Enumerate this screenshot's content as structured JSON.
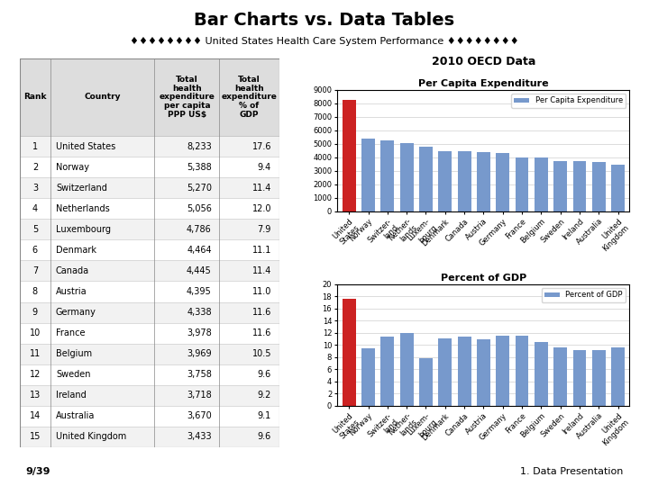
{
  "title": "Bar Charts vs. Data Tables",
  "subtitle": "♦♦♦♦♦♦♦♦ United States Health Care System Performance ♦♦♦♦♦♦♦♦",
  "annotations": [
    "2010 OECD Data",
    "9/39",
    "1. Data Presentation"
  ],
  "chart_data": [
    {
      "type": "table",
      "columns": [
        "Rank",
        "Country",
        "Total\nhealth\nexpenditure\nper capita\nPPP US$",
        "Total\nhealth\nexpenditure\n% of\nGDP"
      ],
      "rows": [
        [
          1,
          "United States",
          "8,233",
          "17.6"
        ],
        [
          2,
          "Norway",
          "5,388",
          "9.4"
        ],
        [
          3,
          "Switzerland",
          "5,270",
          "11.4"
        ],
        [
          4,
          "Netherlands",
          "5,056",
          "12.0"
        ],
        [
          5,
          "Luxembourg",
          "4,786",
          "7.9"
        ],
        [
          6,
          "Denmark",
          "4,464",
          "11.1"
        ],
        [
          7,
          "Canada",
          "4,445",
          "11.4"
        ],
        [
          8,
          "Austria",
          "4,395",
          "11.0"
        ],
        [
          9,
          "Germany",
          "4,338",
          "11.6"
        ],
        [
          10,
          "France",
          "3,978",
          "11.6"
        ],
        [
          11,
          "Belgium",
          "3,969",
          "10.5"
        ],
        [
          12,
          "Sweden",
          "3,758",
          "9.6"
        ],
        [
          13,
          "Ireland",
          "3,718",
          "9.2"
        ],
        [
          14,
          "Australia",
          "3,670",
          "9.1"
        ],
        [
          15,
          "United Kingdom",
          "3,433",
          "9.6"
        ]
      ]
    },
    {
      "type": "bar",
      "title": "Per Capita Expenditure",
      "categories": [
        "United\nStates",
        "Norway",
        "Switzer-\nland",
        "Nether-\nlands",
        "Luxem-\nbourg",
        "Denmark",
        "Canada",
        "Austria",
        "Germany",
        "France",
        "Belgium",
        "Sweden",
        "Ireland",
        "Australia",
        "United\nKingdom"
      ],
      "series": [
        {
          "name": "Per Capita Expenditure",
          "color": "#7799cc",
          "values": [
            8233,
            5388,
            5270,
            5056,
            4786,
            4464,
            4445,
            4395,
            4338,
            3978,
            3969,
            3758,
            3718,
            3670,
            3433
          ]
        }
      ],
      "colors": [
        "#cc2222",
        "#7799cc",
        "#7799cc",
        "#7799cc",
        "#7799cc",
        "#7799cc",
        "#7799cc",
        "#7799cc",
        "#7799cc",
        "#7799cc",
        "#7799cc",
        "#7799cc",
        "#7799cc",
        "#7799cc",
        "#7799cc"
      ],
      "ylim": [
        0,
        9000
      ],
      "yticks": [
        0,
        1000,
        2000,
        3000,
        4000,
        5000,
        6000,
        7000,
        8000,
        9000
      ],
      "grid": true,
      "legend": "upper right"
    },
    {
      "type": "bar",
      "title": "Percent of GDP",
      "categories": [
        "United\nStates",
        "Norway",
        "Switzer-\nland",
        "Nether-\nlands",
        "Luxem-\nbourg",
        "Denmark",
        "Canada",
        "Austria",
        "Germany",
        "France",
        "Belgium",
        "Sweden",
        "Ireland",
        "Australia",
        "United\nKingdom"
      ],
      "series": [
        {
          "name": "Percent of GDP",
          "color": "#7799cc",
          "values": [
            17.6,
            9.4,
            11.4,
            12.0,
            7.9,
            11.1,
            11.4,
            11.0,
            11.6,
            11.6,
            10.5,
            9.6,
            9.2,
            9.1,
            9.6
          ]
        }
      ],
      "colors": [
        "#cc2222",
        "#7799cc",
        "#7799cc",
        "#7799cc",
        "#7799cc",
        "#7799cc",
        "#7799cc",
        "#7799cc",
        "#7799cc",
        "#7799cc",
        "#7799cc",
        "#7799cc",
        "#7799cc",
        "#7799cc",
        "#7799cc"
      ],
      "ylim": [
        0,
        20
      ],
      "yticks": [
        0,
        2,
        4,
        6,
        8,
        10,
        12,
        14,
        16,
        18,
        20
      ],
      "grid": true,
      "legend": "upper right"
    }
  ]
}
